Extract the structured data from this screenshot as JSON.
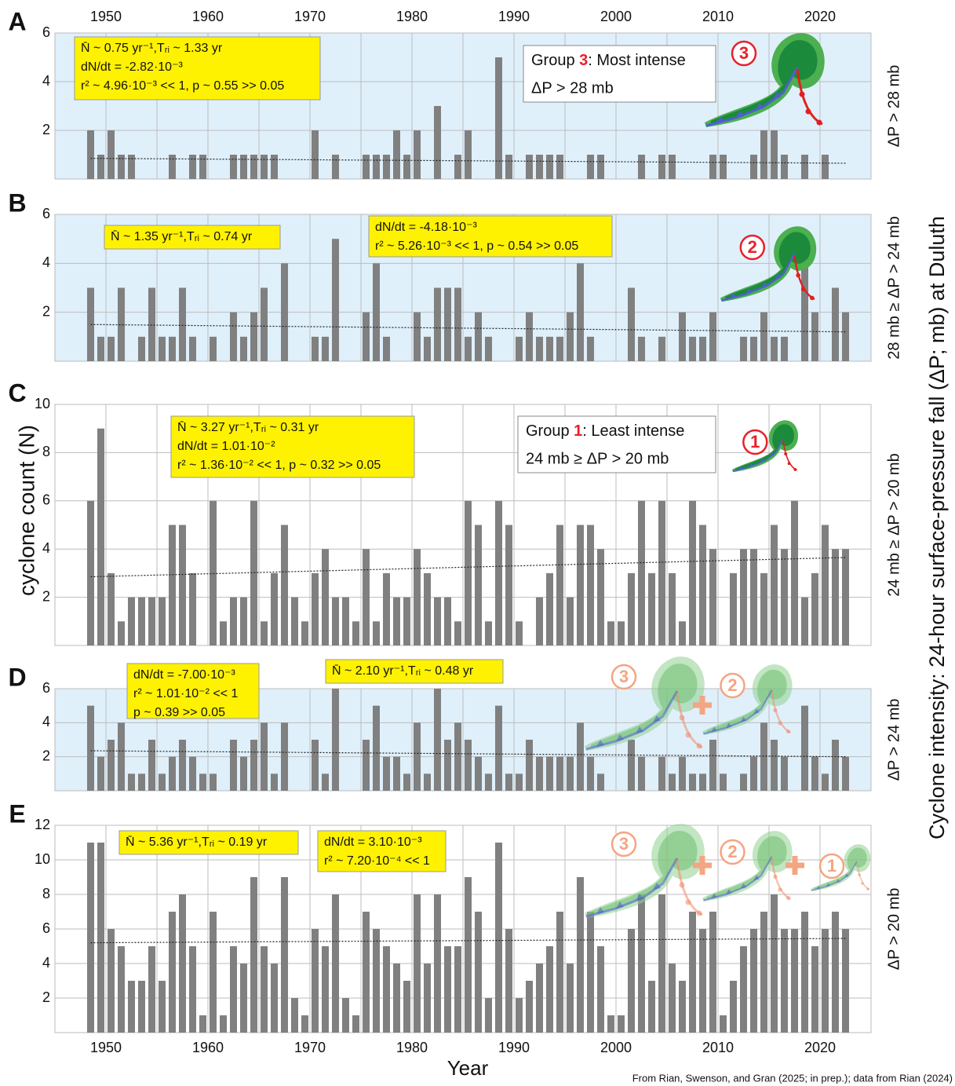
{
  "figure": {
    "y_label": "cyclone count (N)",
    "x_label": "Year",
    "intensity_label": "Cyclone intensity: 24-hour surface-pressure fall (ΔP; mb) at Duluth",
    "source": "From Rian, Swenson, and Gran (2025; in prep.); data from Rian (2024)"
  },
  "chart_data": [
    {
      "type": "bar",
      "panel": "A",
      "range_label": "ΔP > 28 mb",
      "color": "#808080",
      "background": "#dff0fb",
      "x": [
        1948,
        1949,
        1950,
        1951,
        1952,
        1953,
        1954,
        1955,
        1956,
        1957,
        1958,
        1959,
        1960,
        1961,
        1962,
        1963,
        1964,
        1965,
        1966,
        1967,
        1968,
        1969,
        1970,
        1971,
        1972,
        1973,
        1974,
        1975,
        1976,
        1977,
        1978,
        1979,
        1980,
        1981,
        1982,
        1983,
        1984,
        1985,
        1986,
        1987,
        1988,
        1989,
        1990,
        1991,
        1992,
        1993,
        1994,
        1995,
        1996,
        1997,
        1998,
        1999,
        2000,
        2001,
        2002,
        2003,
        2004,
        2005,
        2006,
        2007,
        2008,
        2009,
        2010,
        2011,
        2012,
        2013,
        2014,
        2015,
        2016,
        2017,
        2018,
        2019,
        2020,
        2021,
        2022
      ],
      "values": [
        2,
        1,
        2,
        1,
        1,
        0,
        0,
        0,
        1,
        0,
        1,
        1,
        0,
        0,
        1,
        1,
        1,
        1,
        1,
        0,
        0,
        0,
        2,
        0,
        1,
        0,
        0,
        1,
        1,
        1,
        2,
        1,
        2,
        0,
        3,
        0,
        1,
        2,
        0,
        0,
        5,
        1,
        0,
        1,
        1,
        1,
        1,
        0,
        0,
        1,
        1,
        0,
        0,
        0,
        1,
        0,
        1,
        1,
        0,
        0,
        0,
        1,
        1,
        0,
        0,
        1,
        2,
        2,
        1,
        0,
        1,
        0,
        1,
        0,
        0
      ],
      "xlim": [
        1945,
        2025
      ],
      "ylim": [
        0,
        6
      ],
      "yticks": [
        2,
        4,
        6
      ],
      "xticks": [
        1950,
        1960,
        1970,
        1980,
        1990,
        2000,
        2010,
        2020
      ],
      "xgrid": [
        1950,
        1955,
        1960,
        1965,
        1970,
        1975,
        1980,
        1985,
        1990,
        1995,
        2000,
        2005,
        2010,
        2015,
        2020
      ],
      "trend": {
        "x": [
          1948,
          2022
        ],
        "values": [
          0.85,
          0.65
        ]
      },
      "stats": [
        [
          "N̄ ~ 0.75 yr⁻¹,Tᵣᵢ ~ 1.33 yr",
          "dN/dt = -2.82·10⁻³",
          "r² ~ 4.96·10⁻³ << 1, p ~ 0.55 >> 0.05"
        ]
      ],
      "group": {
        "prefix": "Group ",
        "number": "3",
        "suffix": ": Most intense",
        "criterion": "ΔP > 28 mb"
      },
      "icons": [
        "3"
      ]
    },
    {
      "type": "bar",
      "panel": "B",
      "range_label": "28 mb ≥ ΔP > 24 mb",
      "color": "#808080",
      "background": "#dff0fb",
      "x": [
        1948,
        1949,
        1950,
        1951,
        1952,
        1953,
        1954,
        1955,
        1956,
        1957,
        1958,
        1959,
        1960,
        1961,
        1962,
        1963,
        1964,
        1965,
        1966,
        1967,
        1968,
        1969,
        1970,
        1971,
        1972,
        1973,
        1974,
        1975,
        1976,
        1977,
        1978,
        1979,
        1980,
        1981,
        1982,
        1983,
        1984,
        1985,
        1986,
        1987,
        1988,
        1989,
        1990,
        1991,
        1992,
        1993,
        1994,
        1995,
        1996,
        1997,
        1998,
        1999,
        2000,
        2001,
        2002,
        2003,
        2004,
        2005,
        2006,
        2007,
        2008,
        2009,
        2010,
        2011,
        2012,
        2013,
        2014,
        2015,
        2016,
        2017,
        2018,
        2019,
        2020,
        2021,
        2022
      ],
      "values": [
        3,
        1,
        1,
        3,
        0,
        1,
        3,
        1,
        1,
        3,
        1,
        0,
        1,
        0,
        2,
        1,
        2,
        3,
        0,
        4,
        0,
        0,
        1,
        1,
        5,
        0,
        0,
        2,
        4,
        1,
        0,
        0,
        2,
        1,
        3,
        3,
        3,
        1,
        2,
        1,
        0,
        0,
        1,
        2,
        1,
        1,
        1,
        2,
        4,
        1,
        0,
        0,
        0,
        3,
        1,
        0,
        1,
        0,
        2,
        1,
        1,
        2,
        0,
        0,
        1,
        1,
        2,
        1,
        1,
        0,
        4,
        2,
        0,
        3,
        2
      ],
      "xlim": [
        1945,
        2025
      ],
      "ylim": [
        0,
        6
      ],
      "yticks": [
        2,
        4,
        6
      ],
      "xgrid": [
        1950,
        1955,
        1960,
        1965,
        1970,
        1975,
        1980,
        1985,
        1990,
        1995,
        2000,
        2005,
        2010,
        2015,
        2020
      ],
      "trend": {
        "x": [
          1948,
          2022
        ],
        "values": [
          1.5,
          1.2
        ]
      },
      "stats": [
        [
          "N̄ ~ 1.35 yr⁻¹,Tᵣᵢ ~ 0.74 yr"
        ],
        [
          "dN/dt = -4.18·10⁻³",
          "r² ~ 5.26·10⁻³ << 1, p ~ 0.54 >> 0.05"
        ]
      ],
      "icons": [
        "2"
      ]
    },
    {
      "type": "bar",
      "panel": "C",
      "range_label": "24 mb ≥ ΔP > 20 mb",
      "color": "#808080",
      "background": "#ffffff",
      "x": [
        1948,
        1949,
        1950,
        1951,
        1952,
        1953,
        1954,
        1955,
        1956,
        1957,
        1958,
        1959,
        1960,
        1961,
        1962,
        1963,
        1964,
        1965,
        1966,
        1967,
        1968,
        1969,
        1970,
        1971,
        1972,
        1973,
        1974,
        1975,
        1976,
        1977,
        1978,
        1979,
        1980,
        1981,
        1982,
        1983,
        1984,
        1985,
        1986,
        1987,
        1988,
        1989,
        1990,
        1991,
        1992,
        1993,
        1994,
        1995,
        1996,
        1997,
        1998,
        1999,
        2000,
        2001,
        2002,
        2003,
        2004,
        2005,
        2006,
        2007,
        2008,
        2009,
        2010,
        2011,
        2012,
        2013,
        2014,
        2015,
        2016,
        2017,
        2018,
        2019,
        2020,
        2021,
        2022
      ],
      "values": [
        6,
        9,
        3,
        1,
        2,
        2,
        2,
        2,
        5,
        5,
        3,
        0,
        6,
        1,
        2,
        2,
        6,
        1,
        3,
        5,
        2,
        1,
        3,
        4,
        2,
        2,
        1,
        4,
        1,
        3,
        2,
        2,
        4,
        3,
        2,
        2,
        1,
        6,
        5,
        1,
        6,
        5,
        1,
        0,
        2,
        3,
        5,
        2,
        5,
        5,
        4,
        1,
        1,
        3,
        6,
        3,
        6,
        3,
        1,
        6,
        5,
        4,
        0,
        3,
        4,
        4,
        3,
        5,
        4,
        6,
        2,
        3,
        5,
        4,
        4
      ],
      "xlim": [
        1945,
        2025
      ],
      "ylim": [
        0,
        10
      ],
      "yticks": [
        2,
        4,
        6,
        8,
        10
      ],
      "xgrid": [
        1950,
        1955,
        1960,
        1965,
        1970,
        1975,
        1980,
        1985,
        1990,
        1995,
        2000,
        2005,
        2010,
        2015,
        2020
      ],
      "trend": {
        "x": [
          1948,
          2022
        ],
        "values": [
          2.85,
          3.65
        ]
      },
      "stats": [
        [
          "N̄ ~ 3.27 yr⁻¹,Tᵣᵢ ~ 0.31 yr",
          "dN/dt = 1.01·10⁻²",
          "r² ~ 1.36·10⁻² << 1, p ~ 0.32 >> 0.05"
        ]
      ],
      "group": {
        "prefix": "Group ",
        "number": "1",
        "suffix": ": Least intense",
        "criterion": "24 mb ≥ ΔP > 20 mb"
      },
      "icons": [
        "1"
      ]
    },
    {
      "type": "bar",
      "panel": "D",
      "range_label": "ΔP > 24 mb",
      "color": "#808080",
      "background": "#dff0fb",
      "x": [
        1948,
        1949,
        1950,
        1951,
        1952,
        1953,
        1954,
        1955,
        1956,
        1957,
        1958,
        1959,
        1960,
        1961,
        1962,
        1963,
        1964,
        1965,
        1966,
        1967,
        1968,
        1969,
        1970,
        1971,
        1972,
        1973,
        1974,
        1975,
        1976,
        1977,
        1978,
        1979,
        1980,
        1981,
        1982,
        1983,
        1984,
        1985,
        1986,
        1987,
        1988,
        1989,
        1990,
        1991,
        1992,
        1993,
        1994,
        1995,
        1996,
        1997,
        1998,
        1999,
        2000,
        2001,
        2002,
        2003,
        2004,
        2005,
        2006,
        2007,
        2008,
        2009,
        2010,
        2011,
        2012,
        2013,
        2014,
        2015,
        2016,
        2017,
        2018,
        2019,
        2020,
        2021,
        2022
      ],
      "values": [
        5,
        2,
        3,
        4,
        1,
        1,
        3,
        1,
        2,
        3,
        2,
        1,
        1,
        0,
        3,
        2,
        3,
        4,
        1,
        4,
        0,
        0,
        3,
        1,
        6,
        0,
        0,
        3,
        5,
        2,
        2,
        1,
        4,
        1,
        6,
        3,
        4,
        3,
        2,
        1,
        5,
        1,
        1,
        3,
        2,
        2,
        2,
        2,
        4,
        2,
        1,
        0,
        0,
        3,
        2,
        0,
        2,
        1,
        2,
        1,
        1,
        3,
        1,
        0,
        1,
        2,
        4,
        3,
        2,
        0,
        5,
        2,
        1,
        3,
        2
      ],
      "xlim": [
        1945,
        2025
      ],
      "ylim": [
        0,
        6
      ],
      "yticks": [
        2,
        4,
        6
      ],
      "xgrid": [
        1950,
        1955,
        1960,
        1965,
        1970,
        1975,
        1980,
        1985,
        1990,
        1995,
        2000,
        2005,
        2010,
        2015,
        2020
      ],
      "trend": {
        "x": [
          1948,
          2022
        ],
        "values": [
          2.35,
          2.0
        ]
      },
      "stats": [
        [
          "dN/dt = -7.00·10⁻³",
          "r² ~ 1.01·10⁻² << 1",
          "p ~ 0.39 >> 0.05"
        ],
        [
          "N̄ ~ 2.10 yr⁻¹,Tᵣᵢ ~ 0.48 yr"
        ]
      ],
      "icons": [
        "3",
        "2"
      ]
    },
    {
      "type": "bar",
      "panel": "E",
      "range_label": "ΔP > 20 mb",
      "color": "#808080",
      "background": "#ffffff",
      "x": [
        1948,
        1949,
        1950,
        1951,
        1952,
        1953,
        1954,
        1955,
        1956,
        1957,
        1958,
        1959,
        1960,
        1961,
        1962,
        1963,
        1964,
        1965,
        1966,
        1967,
        1968,
        1969,
        1970,
        1971,
        1972,
        1973,
        1974,
        1975,
        1976,
        1977,
        1978,
        1979,
        1980,
        1981,
        1982,
        1983,
        1984,
        1985,
        1986,
        1987,
        1988,
        1989,
        1990,
        1991,
        1992,
        1993,
        1994,
        1995,
        1996,
        1997,
        1998,
        1999,
        2000,
        2001,
        2002,
        2003,
        2004,
        2005,
        2006,
        2007,
        2008,
        2009,
        2010,
        2011,
        2012,
        2013,
        2014,
        2015,
        2016,
        2017,
        2018,
        2019,
        2020,
        2021,
        2022
      ],
      "values": [
        11,
        11,
        6,
        5,
        3,
        3,
        5,
        3,
        7,
        8,
        5,
        1,
        7,
        1,
        5,
        4,
        9,
        5,
        4,
        9,
        2,
        1,
        6,
        5,
        8,
        2,
        1,
        7,
        6,
        5,
        4,
        3,
        8,
        4,
        8,
        5,
        5,
        9,
        7,
        2,
        11,
        6,
        2,
        3,
        4,
        5,
        7,
        4,
        9,
        7,
        5,
        1,
        1,
        6,
        8,
        3,
        8,
        4,
        3,
        7,
        6,
        7,
        1,
        3,
        5,
        6,
        7,
        8,
        6,
        6,
        7,
        5,
        6,
        7,
        6
      ],
      "xlim": [
        1945,
        2025
      ],
      "ylim": [
        0,
        12
      ],
      "yticks": [
        2,
        4,
        6,
        8,
        10,
        12
      ],
      "xticks": [
        1950,
        1960,
        1970,
        1980,
        1990,
        2000,
        2010,
        2020
      ],
      "xgrid": [
        1950,
        1955,
        1960,
        1965,
        1970,
        1975,
        1980,
        1985,
        1990,
        1995,
        2000,
        2005,
        2010,
        2015,
        2020
      ],
      "trend": {
        "x": [
          1948,
          2022
        ],
        "values": [
          5.2,
          5.45
        ]
      },
      "stats": [
        [
          "N̄ ~ 5.36 yr⁻¹,Tᵣᵢ ~ 0.19 yr"
        ],
        [
          "dN/dt = 3.10·10⁻³",
          "r² ~ 7.20·10⁻⁴ << 1"
        ]
      ],
      "icons": [
        "3",
        "2",
        "1"
      ]
    }
  ]
}
